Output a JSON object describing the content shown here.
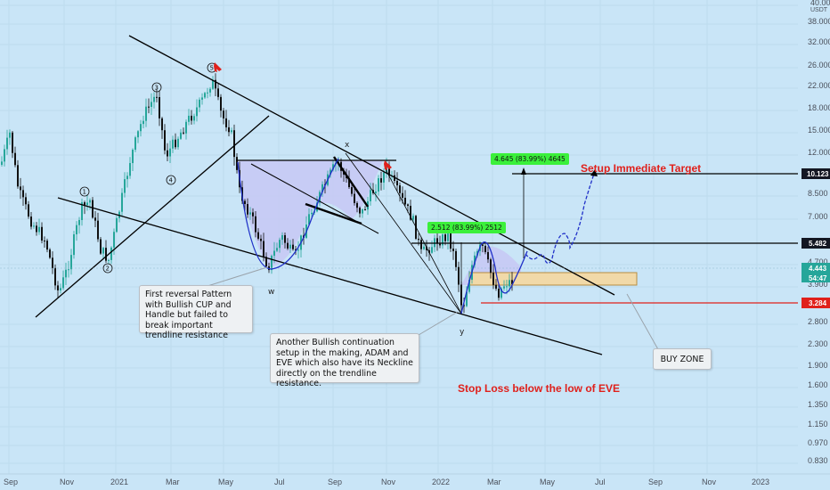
{
  "chart_data": {
    "type": "candlestick",
    "price_axis": {
      "unit_label": "USDT",
      "scale": "log",
      "ticks": [
        "40.000",
        "38.000",
        "32.000",
        "26.000",
        "22.000",
        "18.000",
        "15.000",
        "12.000",
        "10.123",
        "8.500",
        "7.000",
        "5.482",
        "4.700",
        "4.443",
        "54:47",
        "3.900",
        "3.284",
        "2.800",
        "2.300",
        "1.900",
        "1.600",
        "1.350",
        "1.150",
        "0.970",
        "0.830"
      ]
    },
    "time_axis": {
      "ticks": [
        "Sep",
        "Nov",
        "2021",
        "Mar",
        "May",
        "Jul",
        "Sep",
        "Nov",
        "2022",
        "Mar",
        "May",
        "Jul",
        "Sep",
        "Nov",
        "2023"
      ]
    },
    "price_tags": [
      {
        "value": "10.123",
        "color": "#131722",
        "text_color": "#ffffff"
      },
      {
        "value": "5.482",
        "color": "#131722",
        "text_color": "#ffffff"
      },
      {
        "value": "4.443",
        "color": "#26a69a",
        "text_color": "#ffffff"
      },
      {
        "value": "54:47",
        "color": "#26a69a",
        "text_color": "#ffffff"
      },
      {
        "value": "3.284",
        "color": "#e0201b",
        "text_color": "#ffffff"
      }
    ],
    "wave_labels": [
      "1",
      "2",
      "3",
      "4",
      "5"
    ],
    "point_labels": [
      "w",
      "x",
      "y"
    ],
    "measure_tags": [
      "4.645 (83.99%) 4645",
      "2.512 (83.99%) 2512"
    ],
    "annotations": [
      "First reversal Pattern with Bullish CUP and Handle but failed to break important trendline resistance",
      "Another Bullish continuation setup in the making, ADAM and EVE which also have its Neckline directly on the trendline resistance.",
      "BUY ZONE"
    ],
    "red_labels": [
      "Setup Immediate Target",
      "Stop Loss below the low of EVE"
    ],
    "colors": {
      "background": "#c9e5f7",
      "bull": "#26a69a",
      "bear": "#111111",
      "cup_fill": "#c7c8f5",
      "projection": "#2030c8",
      "buy_zone": "#f1d9a8",
      "stop_line": "#e0201b"
    }
  }
}
